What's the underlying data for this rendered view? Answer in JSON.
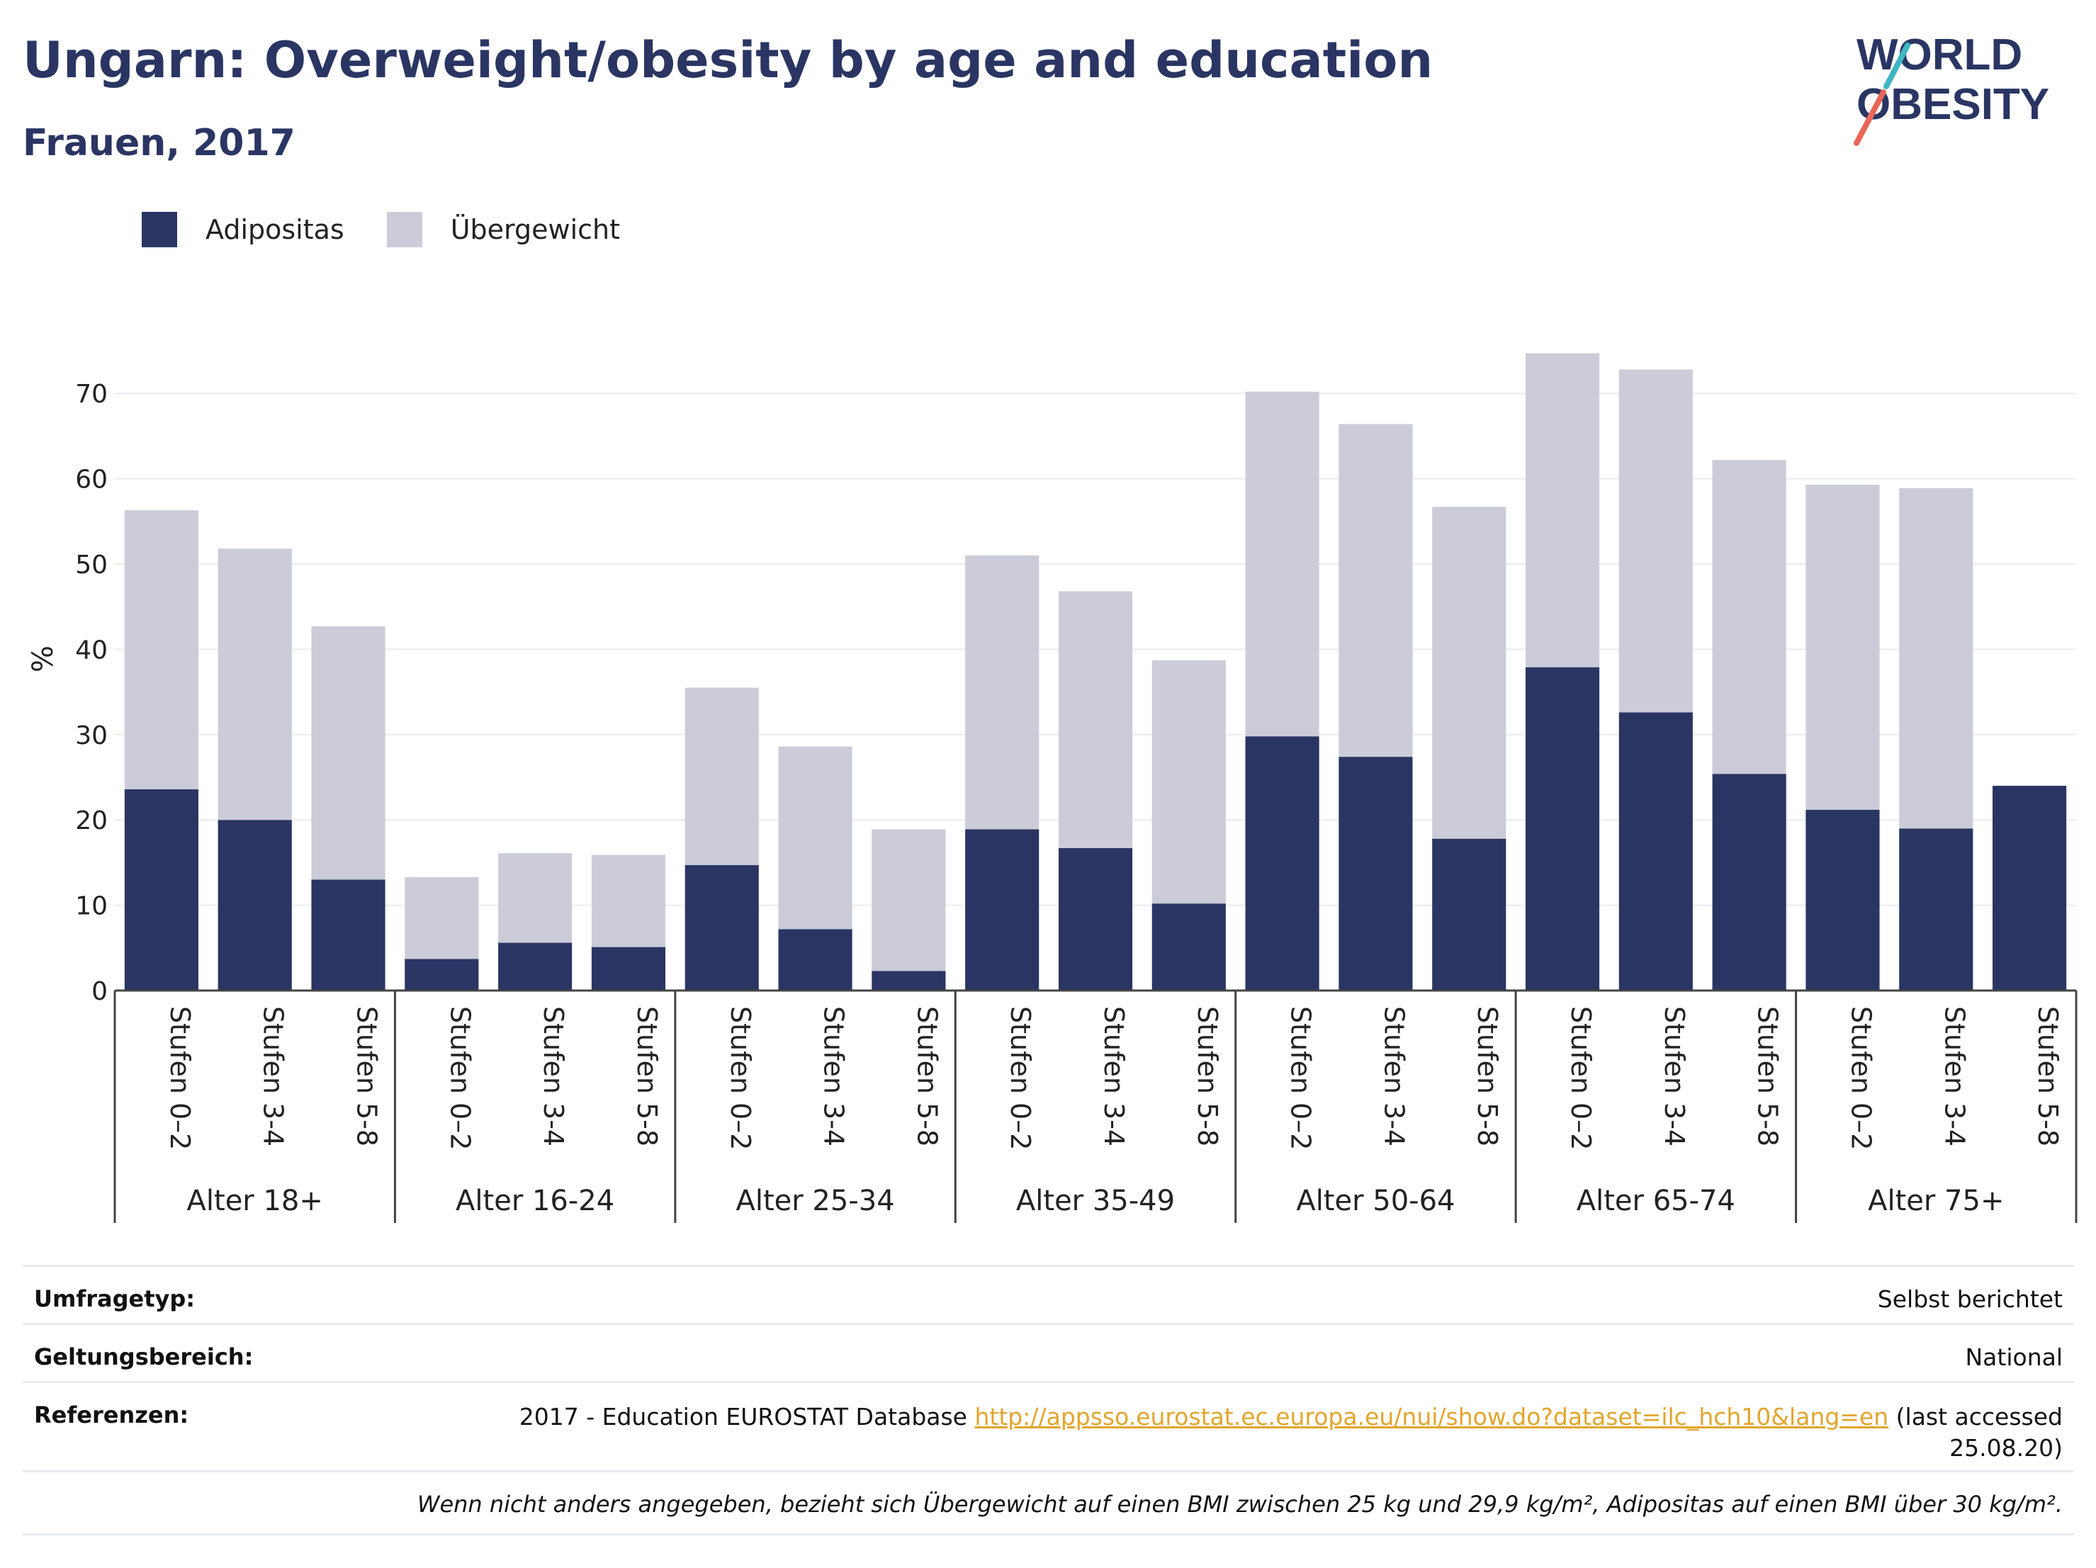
{
  "header": {
    "title": "Ungarn: Overweight/obesity by age and education",
    "subtitle": "Frauen, 2017"
  },
  "logo": {
    "line1": "WORLD",
    "line2": "OBESITY",
    "colors": [
      "#2a3563",
      "#e8675a",
      "#3fb7c2"
    ]
  },
  "legend": [
    {
      "label": "Adipositas",
      "color": "#2a3563"
    },
    {
      "label": "Übergewicht",
      "color": "#cbccd8"
    }
  ],
  "chart_data": {
    "type": "bar",
    "stacked": true,
    "ylabel": "%",
    "ylim": [
      0,
      75
    ],
    "yticks": [
      0,
      10,
      20,
      30,
      40,
      50,
      60,
      70
    ],
    "grid": true,
    "legend_position": "top-left",
    "groups": [
      "Alter 18+",
      "Alter 16-24",
      "Alter 25-34",
      "Alter 35-49",
      "Alter 50-64",
      "Alter 65-74",
      "Alter 75+"
    ],
    "subcategories": [
      "Stufen 0–2",
      "Stufen 3-4",
      "Stufen 5-8"
    ],
    "series": [
      {
        "name": "Adipositas",
        "color": "#2a3563",
        "values": [
          23.6,
          20.0,
          13.0,
          3.7,
          5.6,
          5.1,
          14.7,
          7.2,
          2.3,
          18.9,
          16.7,
          10.2,
          29.8,
          27.4,
          17.8,
          37.9,
          32.6,
          25.4,
          21.2,
          19.0,
          24.0
        ]
      },
      {
        "name": "Übergewicht",
        "color": "#cbccd8",
        "values": [
          32.7,
          31.8,
          29.7,
          9.6,
          10.5,
          10.8,
          20.8,
          21.4,
          16.6,
          32.1,
          30.1,
          28.5,
          40.4,
          39.0,
          38.9,
          36.8,
          40.2,
          36.8,
          38.1,
          39.9,
          0.0
        ]
      }
    ]
  },
  "meta": {
    "survey_label": "Umfragetyp:",
    "survey_value": "Selbst berichtet",
    "scope_label": "Geltungsbereich:",
    "scope_value": "National",
    "ref_label": "Referenzen:",
    "ref_prefix": "2017 - Education EUROSTAT Database",
    "ref_link": "http://appsso.eurostat.ec.europa.eu/nui/show.do?dataset=ilc_hch10&lang=en",
    "ref_suffix_1": "(last accessed",
    "ref_suffix_2": "25.08.20)",
    "footnote": "Wenn nicht anders angegeben, bezieht sich Übergewicht auf einen BMI zwischen 25 kg und 29,9 kg/m², Adipositas auf einen BMI über 30 kg/m²."
  }
}
